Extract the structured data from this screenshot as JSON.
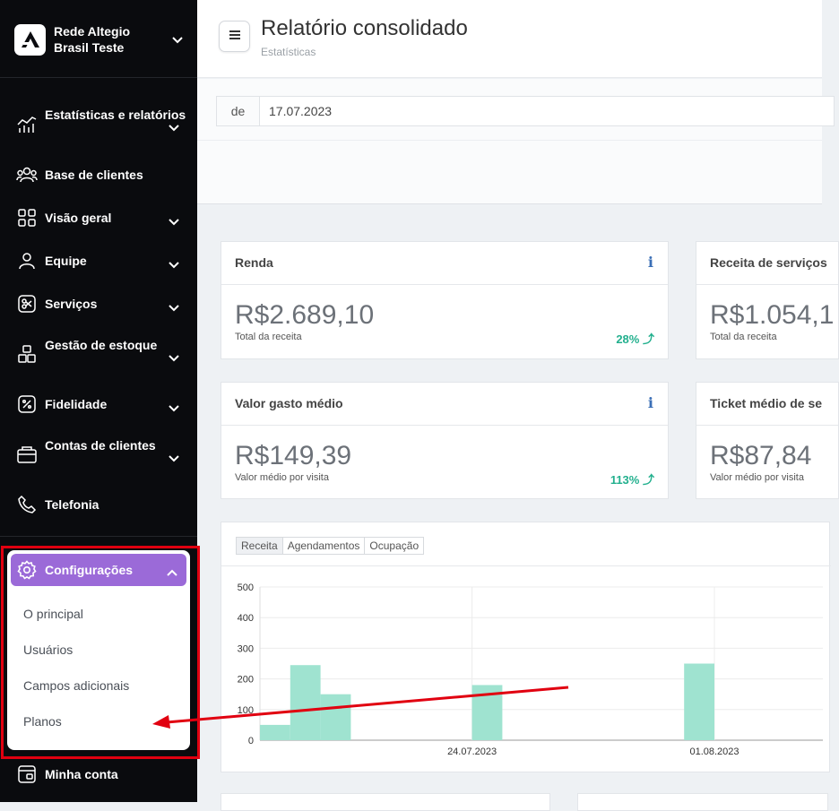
{
  "sidebar": {
    "org_name": "Rede Altegio Brasil Teste",
    "items": [
      {
        "label": "Estatísticas e relatórios",
        "icon": "stats-chart-icon",
        "has_chevron": true
      },
      {
        "label": "Base de clientes",
        "icon": "clients-icon",
        "has_chevron": false
      },
      {
        "label": "Visão geral",
        "icon": "grid-icon",
        "has_chevron": true
      },
      {
        "label": "Equipe",
        "icon": "user-icon",
        "has_chevron": true
      },
      {
        "label": "Serviços",
        "icon": "scissors-icon",
        "has_chevron": true
      },
      {
        "label": "Gestão de estoque",
        "icon": "boxes-icon",
        "has_chevron": true
      },
      {
        "label": "Fidelidade",
        "icon": "percent-icon",
        "has_chevron": true
      },
      {
        "label": "Contas de clientes",
        "icon": "wallet-icon",
        "has_chevron": true
      },
      {
        "label": "Telefonia",
        "icon": "phone-icon",
        "has_chevron": false
      }
    ],
    "settings": {
      "label": "Configurações",
      "icon": "gear-icon",
      "accent": "#9b6ad8",
      "subitems": [
        "O principal",
        "Usuários",
        "Campos adicionais",
        "Planos"
      ]
    },
    "account": {
      "label": "Minha conta",
      "icon": "account-card-icon"
    }
  },
  "header": {
    "title": "Relatório consolidado",
    "subtitle": "Estatísticas"
  },
  "filter": {
    "prefix": "de",
    "date": "17.07.2023"
  },
  "cards": [
    {
      "title": "Renda",
      "value": "R$2.689,10",
      "caption": "Total da receita",
      "change": "28%",
      "info": true
    },
    {
      "title": "Receita de serviços",
      "value": "R$1.054,1",
      "caption": "Total da receita",
      "change": "",
      "info": false
    },
    {
      "title": "Valor gasto médio",
      "value": "R$149,39",
      "caption": "Valor médio por visita",
      "change": "113%",
      "info": true
    },
    {
      "title": "Ticket médio de se",
      "value": "R$87,84",
      "caption": "Valor médio por visita",
      "change": "",
      "info": false
    }
  ],
  "chart_tabs": [
    "Receita",
    "Agendamentos",
    "Ocupação"
  ],
  "chart_data": {
    "type": "bar",
    "ylim": [
      0,
      500
    ],
    "yticks": [
      0,
      100,
      200,
      300,
      400,
      500
    ],
    "xtick_labels": [
      {
        "label": "24.07.2023",
        "day": 7
      },
      {
        "label": "01.08.2023",
        "day": 15
      }
    ],
    "bars": [
      {
        "day": 0,
        "value": 50
      },
      {
        "day": 1,
        "value": 245
      },
      {
        "day": 2,
        "value": 150
      },
      {
        "day": 7,
        "value": 180
      },
      {
        "day": 14,
        "value": 250
      }
    ],
    "color": "#9fe3d0",
    "grid": true
  },
  "colors": {
    "positive": "#23b08e",
    "info": "#3b6fb6",
    "annotation": "#e10010"
  }
}
